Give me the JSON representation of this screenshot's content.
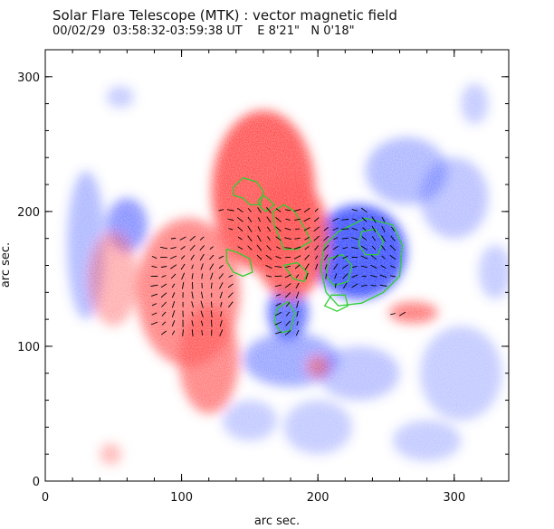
{
  "chart_data": {
    "type": "heatmap",
    "title": "Solar Flare Telescope (MTK) : vector magnetic field",
    "subtitle": "00/02/29  03:58:32-03:59:38 UT    E 8'21\"   N 0'18\"",
    "xlabel": "arc sec.",
    "ylabel": "arc sec.",
    "xlim": [
      0,
      340
    ],
    "ylim": [
      0,
      320
    ],
    "xticks": [
      0,
      100,
      200,
      300
    ],
    "yticks": [
      0,
      100,
      200,
      300
    ],
    "xtick_labels": [
      "0",
      "100",
      "200",
      "300"
    ],
    "ytick_labels": [
      "0",
      "100",
      "200",
      "300"
    ],
    "legend": [],
    "colors": {
      "positive_polarity": "#ff5050",
      "negative_polarity": "#3a4dff",
      "contour": "#2fcf2f",
      "vectors": "#000000"
    },
    "positive_regions": [
      {
        "x": 160,
        "y": 215,
        "rx": 38,
        "ry": 60,
        "strength": 0.95
      },
      {
        "x": 180,
        "y": 180,
        "rx": 28,
        "ry": 45,
        "strength": 0.9
      },
      {
        "x": 105,
        "y": 140,
        "rx": 38,
        "ry": 55,
        "strength": 0.7
      },
      {
        "x": 120,
        "y": 90,
        "rx": 22,
        "ry": 40,
        "strength": 0.7
      },
      {
        "x": 50,
        "y": 150,
        "rx": 18,
        "ry": 35,
        "strength": 0.45
      },
      {
        "x": 270,
        "y": 125,
        "rx": 18,
        "ry": 8,
        "strength": 0.75
      },
      {
        "x": 200,
        "y": 85,
        "rx": 8,
        "ry": 8,
        "strength": 0.6
      },
      {
        "x": 48,
        "y": 20,
        "rx": 8,
        "ry": 8,
        "strength": 0.4
      }
    ],
    "negative_regions": [
      {
        "x": 230,
        "y": 170,
        "rx": 35,
        "ry": 35,
        "strength": 0.95
      },
      {
        "x": 178,
        "y": 125,
        "rx": 15,
        "ry": 20,
        "strength": 0.8
      },
      {
        "x": 60,
        "y": 190,
        "rx": 15,
        "ry": 20,
        "strength": 0.6
      },
      {
        "x": 30,
        "y": 175,
        "rx": 14,
        "ry": 55,
        "strength": 0.4
      },
      {
        "x": 265,
        "y": 230,
        "rx": 30,
        "ry": 25,
        "strength": 0.4
      },
      {
        "x": 300,
        "y": 210,
        "rx": 25,
        "ry": 30,
        "strength": 0.35
      },
      {
        "x": 180,
        "y": 90,
        "rx": 35,
        "ry": 20,
        "strength": 0.5
      },
      {
        "x": 230,
        "y": 80,
        "rx": 30,
        "ry": 20,
        "strength": 0.35
      },
      {
        "x": 55,
        "y": 285,
        "rx": 10,
        "ry": 8,
        "strength": 0.3
      },
      {
        "x": 305,
        "y": 80,
        "rx": 30,
        "ry": 35,
        "strength": 0.3
      },
      {
        "x": 200,
        "y": 40,
        "rx": 25,
        "ry": 20,
        "strength": 0.3
      },
      {
        "x": 150,
        "y": 45,
        "rx": 20,
        "ry": 15,
        "strength": 0.3
      },
      {
        "x": 280,
        "y": 30,
        "rx": 25,
        "ry": 15,
        "strength": 0.3
      },
      {
        "x": 315,
        "y": 280,
        "rx": 10,
        "ry": 15,
        "strength": 0.3
      },
      {
        "x": 330,
        "y": 155,
        "rx": 12,
        "ry": 20,
        "strength": 0.3
      }
    ],
    "contours": [
      [
        [
          138,
          218
        ],
        [
          145,
          225
        ],
        [
          155,
          222
        ],
        [
          160,
          215
        ],
        [
          158,
          205
        ],
        [
          150,
          205
        ],
        [
          145,
          210
        ],
        [
          138,
          212
        ]
      ],
      [
        [
          160,
          212
        ],
        [
          165,
          208
        ],
        [
          168,
          205
        ],
        [
          162,
          200
        ],
        [
          158,
          203
        ],
        [
          156,
          208
        ]
      ],
      [
        [
          167,
          200
        ],
        [
          175,
          205
        ],
        [
          183,
          200
        ],
        [
          190,
          188
        ],
        [
          195,
          178
        ],
        [
          185,
          172
        ],
        [
          175,
          172
        ],
        [
          172,
          180
        ],
        [
          168,
          190
        ]
      ],
      [
        [
          133,
          172
        ],
        [
          140,
          170
        ],
        [
          150,
          165
        ],
        [
          152,
          155
        ],
        [
          145,
          152
        ],
        [
          138,
          155
        ],
        [
          133,
          163
        ]
      ],
      [
        [
          175,
          160
        ],
        [
          185,
          162
        ],
        [
          192,
          155
        ],
        [
          190,
          148
        ],
        [
          182,
          150
        ]
      ],
      [
        [
          170,
          128
        ],
        [
          178,
          133
        ],
        [
          183,
          125
        ],
        [
          180,
          112
        ],
        [
          173,
          110
        ],
        [
          168,
          118
        ]
      ],
      [
        [
          205,
          175
        ],
        [
          215,
          185
        ],
        [
          235,
          195
        ],
        [
          255,
          190
        ],
        [
          262,
          175
        ],
        [
          260,
          152
        ],
        [
          248,
          140
        ],
        [
          232,
          132
        ],
        [
          215,
          130
        ],
        [
          206,
          140
        ],
        [
          202,
          158
        ]
      ],
      [
        [
          208,
          165
        ],
        [
          218,
          168
        ],
        [
          225,
          160
        ],
        [
          222,
          148
        ],
        [
          212,
          145
        ],
        [
          206,
          152
        ]
      ],
      [
        [
          232,
          185
        ],
        [
          242,
          187
        ],
        [
          248,
          178
        ],
        [
          244,
          168
        ],
        [
          235,
          168
        ],
        [
          230,
          175
        ]
      ],
      [
        [
          205,
          130
        ],
        [
          210,
          138
        ],
        [
          220,
          138
        ],
        [
          222,
          130
        ],
        [
          214,
          126
        ]
      ]
    ],
    "vector_field": {
      "x_range": [
        80,
        265
      ],
      "y_range": [
        110,
        205
      ],
      "spacing": 7,
      "length": 8
    }
  }
}
